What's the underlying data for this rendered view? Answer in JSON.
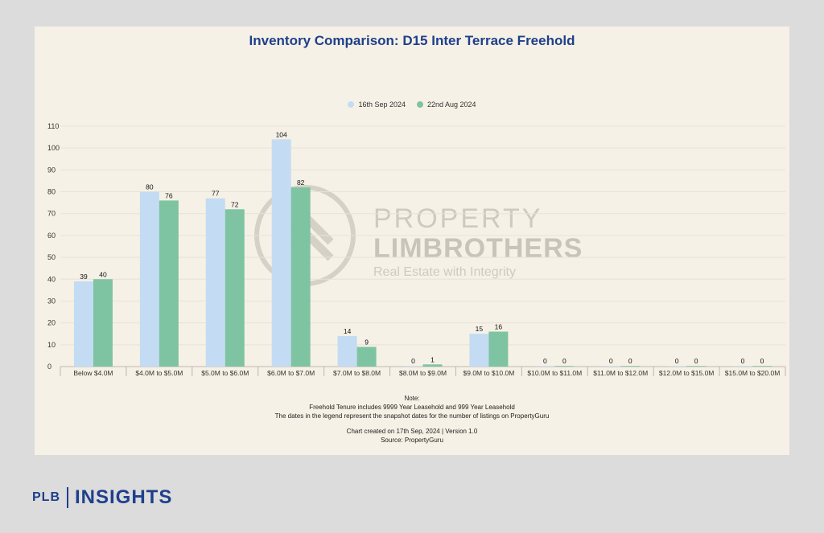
{
  "chart_data": {
    "type": "bar",
    "title": "Inventory Comparison: D15 Inter Terrace Freehold",
    "categories": [
      "Below $4.0M",
      "$4.0M to $5.0M",
      "$5.0M to $6.0M",
      "$6.0M to $7.0M",
      "$7.0M to $8.0M",
      "$8.0M to $9.0M",
      "$9.0M to $10.0M",
      "$10.0M to $11.0M",
      "$11.0M to $12.0M",
      "$12.0M to $15.0M",
      "$15.0M to $20.0M"
    ],
    "series": [
      {
        "name": "16th Sep 2024",
        "color": "#c3dcf3",
        "values": [
          39,
          80,
          77,
          104,
          14,
          0,
          15,
          0,
          0,
          0,
          0
        ]
      },
      {
        "name": "22nd Aug 2024",
        "color": "#7ec4a2",
        "values": [
          40,
          76,
          72,
          82,
          9,
          1,
          16,
          0,
          0,
          0,
          0
        ]
      }
    ],
    "ylim": [
      0,
      110
    ],
    "yticks": [
      0,
      10,
      20,
      30,
      40,
      50,
      60,
      70,
      80,
      90,
      100,
      110
    ],
    "grid": true,
    "legend": "top-center",
    "xlabel": "",
    "ylabel": ""
  },
  "notes": {
    "heading": "Note:",
    "line1": "Freehold Tenure includes 9999 Year Leasehold and 999 Year Leasehold",
    "line2": "The dates in the legend represent the snapshot dates for the number of listings on PropertyGuru",
    "created": "Chart created on 17th Sep, 2024 | Version 1.0",
    "source": "Source: PropertyGuru"
  },
  "watermark": {
    "line1": "PROPERTY",
    "line2": "LIMBROTHERS",
    "line3": "Real Estate with Integrity"
  },
  "branding": {
    "plb": "PLB",
    "insights": "INSIGHTS",
    "color": "#1e3f8c"
  }
}
